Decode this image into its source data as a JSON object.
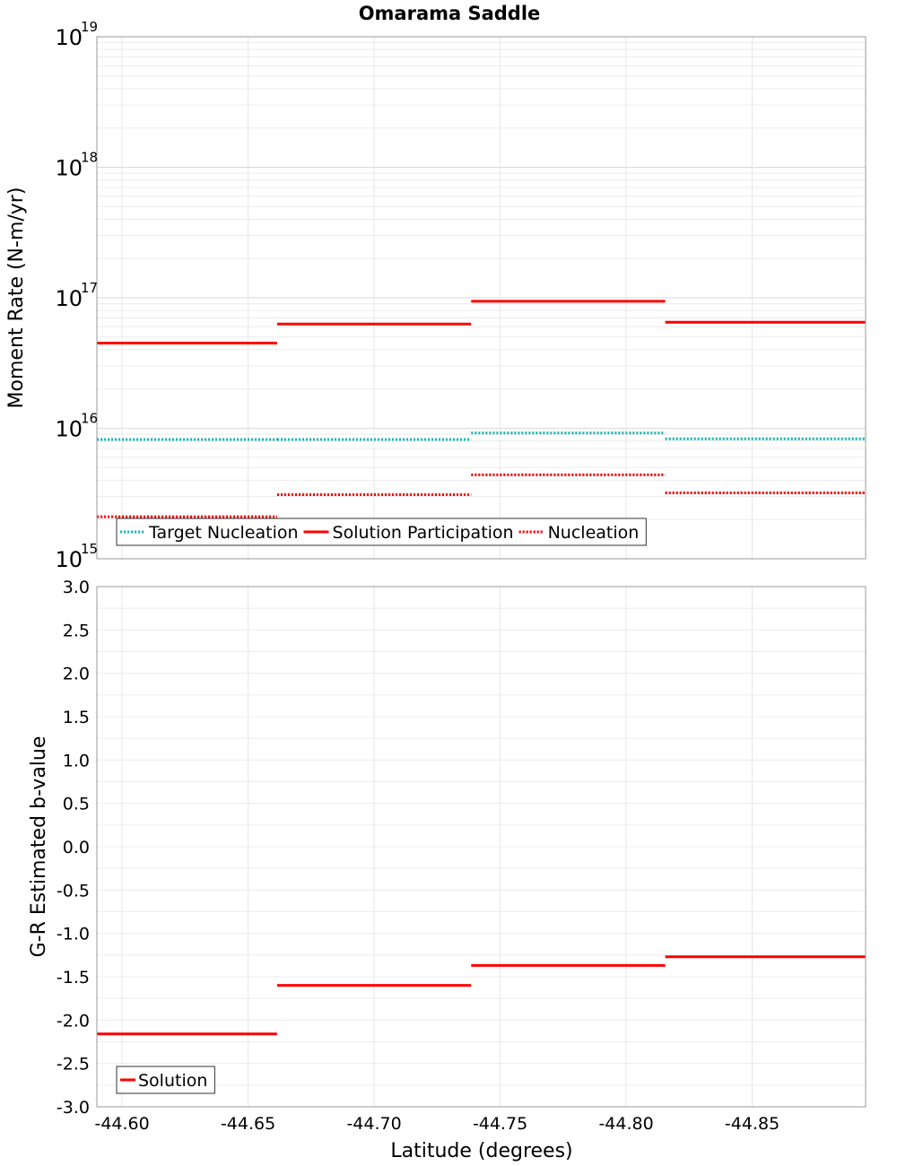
{
  "chart_data": [
    {
      "type": "line",
      "title": "Omarama Saddle",
      "ylabel": "Moment Rate (N-m/yr)",
      "xlabel": "",
      "y_scale": "log",
      "ylim": [
        1000000000000000.0,
        1e+19
      ],
      "xlim": [
        -44.59,
        -44.895
      ],
      "x_reversed": true,
      "grid": true,
      "x_tick_values": [
        -44.6,
        -44.65,
        -44.7,
        -44.75,
        -44.8,
        -44.85
      ],
      "y_tick_exponents": [
        15,
        16,
        17,
        18,
        19
      ],
      "y_tick_base": "10",
      "legend_position": "bottom-left",
      "series": [
        {
          "name": "Target Nucleation",
          "color": "#1fb5b5",
          "style": "dotted",
          "segments": [
            {
              "x": [
                -44.59,
                -44.6615
              ],
              "y": 8200000000000000.0
            },
            {
              "x": [
                -44.6615,
                -44.7385
              ],
              "y": 8200000000000000.0
            },
            {
              "x": [
                -44.7385,
                -44.8155
              ],
              "y": 9200000000000000.0
            },
            {
              "x": [
                -44.8155,
                -44.895
              ],
              "y": 8300000000000000.0
            }
          ]
        },
        {
          "name": "Solution Participation",
          "color": "#ff0000",
          "style": "solid",
          "segments": [
            {
              "x": [
                -44.59,
                -44.6615
              ],
              "y": 4.5e+16
            },
            {
              "x": [
                -44.6615,
                -44.7385
              ],
              "y": 6.3e+16
            },
            {
              "x": [
                -44.7385,
                -44.8155
              ],
              "y": 9.4e+16
            },
            {
              "x": [
                -44.8155,
                -44.895
              ],
              "y": 6.5e+16
            }
          ]
        },
        {
          "name": "Nucleation",
          "color": "#ff0000",
          "style": "dotted",
          "segments": [
            {
              "x": [
                -44.59,
                -44.6615
              ],
              "y": 2100000000000000.0
            },
            {
              "x": [
                -44.6615,
                -44.7385
              ],
              "y": 3100000000000000.0
            },
            {
              "x": [
                -44.7385,
                -44.8155
              ],
              "y": 4400000000000000.0
            },
            {
              "x": [
                -44.8155,
                -44.895
              ],
              "y": 3200000000000000.0
            }
          ]
        }
      ]
    },
    {
      "type": "line",
      "title": "",
      "ylabel": "G-R Estimated b-value",
      "xlabel": "Latitude (degrees)",
      "ylim": [
        -3.0,
        3.0
      ],
      "xlim": [
        -44.59,
        -44.895
      ],
      "x_reversed": true,
      "grid": true,
      "x_tick_values": [
        -44.6,
        -44.65,
        -44.7,
        -44.75,
        -44.8,
        -44.85
      ],
      "x_tick_labels": [
        "-44.60",
        "-44.65",
        "-44.70",
        "-44.75",
        "-44.80",
        "-44.85"
      ],
      "y_tick_values": [
        3.0,
        2.5,
        2.0,
        1.5,
        1.0,
        0.5,
        0.0,
        -0.5,
        -1.0,
        -1.5,
        -2.0,
        -2.5,
        -3.0
      ],
      "y_tick_labels": [
        "3.0",
        "2.5",
        "2.0",
        "1.5",
        "1.0",
        "0.5",
        "0.0",
        "-0.5",
        "-1.0",
        "-1.5",
        "-2.0",
        "-2.5",
        "-3.0"
      ],
      "legend_position": "bottom-left",
      "series": [
        {
          "name": "Solution",
          "color": "#ff0000",
          "style": "solid",
          "segments": [
            {
              "x": [
                -44.59,
                -44.6615
              ],
              "y": -2.16
            },
            {
              "x": [
                -44.6615,
                -44.7385
              ],
              "y": -1.6
            },
            {
              "x": [
                -44.7385,
                -44.8155
              ],
              "y": -1.37
            },
            {
              "x": [
                -44.8155,
                -44.895
              ],
              "y": -1.27
            }
          ]
        }
      ]
    }
  ]
}
